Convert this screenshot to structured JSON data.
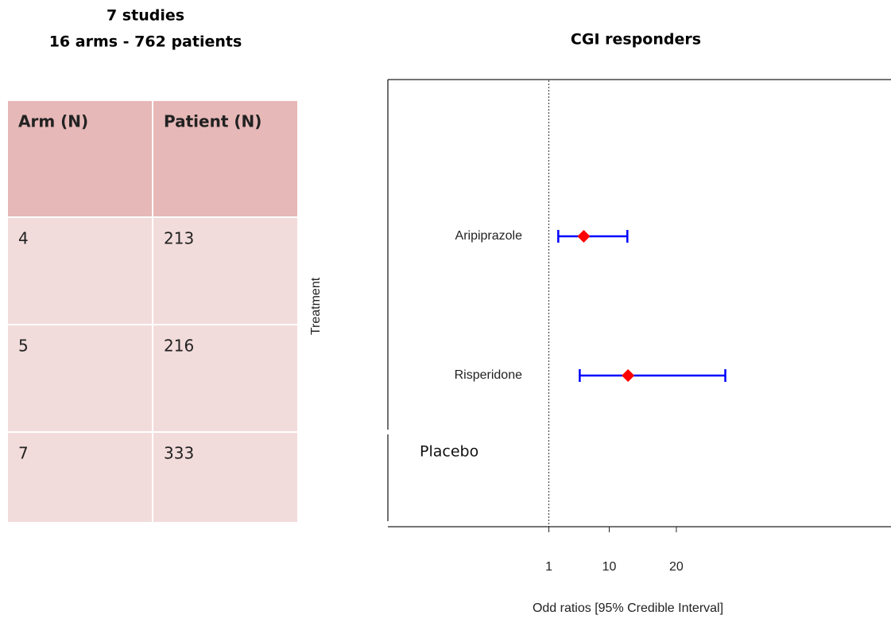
{
  "summary": {
    "title": "7 studies",
    "subtitle": "16 arms - 762 patients"
  },
  "table": {
    "header": [
      "Arm (N)",
      "Patient (N)"
    ],
    "rows": [
      [
        4,
        213
      ],
      [
        5,
        216
      ],
      [
        7,
        333
      ]
    ]
  },
  "chart_data": {
    "type": "forest",
    "title": "CGI responders",
    "x_label": "Odd ratios [95% Credible Interval]",
    "y_label": "Treatment",
    "categories": [
      "Aripiprazole",
      "Risperidone",
      "Placebo"
    ],
    "values": [
      6.2,
      12.8,
      null
    ],
    "lower": [
      2.4,
      5.6,
      null
    ],
    "upper": [
      12.7,
      27.3,
      null
    ],
    "point_color": "#ff0000",
    "interval_color": "#0000ff",
    "ref_line": 1,
    "xlim": [
      -23,
      52
    ],
    "xticks": [
      1,
      10,
      20
    ]
  }
}
